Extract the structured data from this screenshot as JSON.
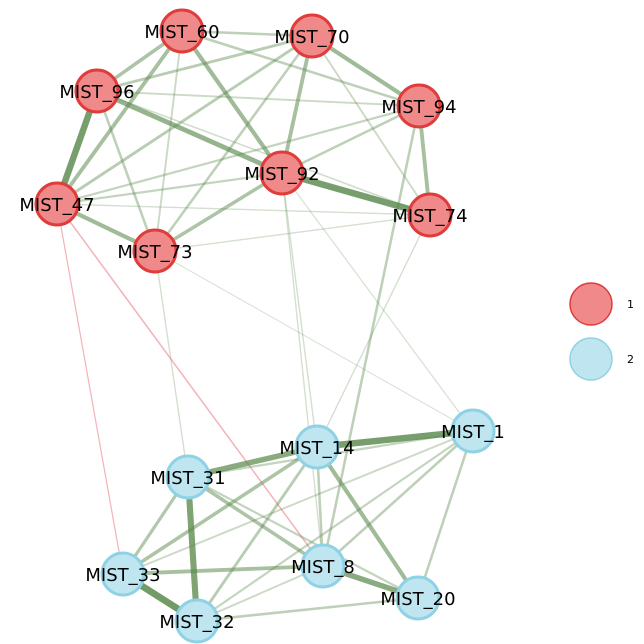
{
  "groups": [
    {
      "id": "1",
      "label": "1",
      "fill": "#f08a8a",
      "stroke": "#e03c3c"
    },
    {
      "id": "2",
      "label": "2",
      "fill": "#bfe6f0",
      "stroke": "#8fd2e6"
    }
  ],
  "edge_colors": {
    "positive": "#5c8a4e",
    "negative": "#e45a6a"
  },
  "nodes": [
    {
      "id": "MIST_60",
      "label": "MIST_60",
      "group": "1"
    },
    {
      "id": "MIST_70",
      "label": "MIST_70",
      "group": "1"
    },
    {
      "id": "MIST_96",
      "label": "MIST_96",
      "group": "1"
    },
    {
      "id": "MIST_94",
      "label": "MIST_94",
      "group": "1"
    },
    {
      "id": "MIST_92",
      "label": "MIST_92",
      "group": "1"
    },
    {
      "id": "MIST_47",
      "label": "MIST_47",
      "group": "1"
    },
    {
      "id": "MIST_74",
      "label": "MIST_74",
      "group": "1"
    },
    {
      "id": "MIST_73",
      "label": "MIST_73",
      "group": "1"
    },
    {
      "id": "MIST_14",
      "label": "MIST_14",
      "group": "2"
    },
    {
      "id": "MIST_1",
      "label": "MIST_1",
      "group": "2"
    },
    {
      "id": "MIST_31",
      "label": "MIST_31",
      "group": "2"
    },
    {
      "id": "MIST_33",
      "label": "MIST_33",
      "group": "2"
    },
    {
      "id": "MIST_8",
      "label": "MIST_8",
      "group": "2"
    },
    {
      "id": "MIST_20",
      "label": "MIST_20",
      "group": "2"
    },
    {
      "id": "MIST_32",
      "label": "MIST_32",
      "group": "2"
    }
  ],
  "edges": [
    {
      "from": "MIST_96",
      "to": "MIST_47",
      "weight": 0.9,
      "sign": "positive"
    },
    {
      "from": "MIST_96",
      "to": "MIST_92",
      "weight": 0.65,
      "sign": "positive"
    },
    {
      "from": "MIST_92",
      "to": "MIST_74",
      "weight": 0.9,
      "sign": "positive"
    },
    {
      "from": "MIST_60",
      "to": "MIST_92",
      "weight": 0.55,
      "sign": "positive"
    },
    {
      "from": "MIST_60",
      "to": "MIST_47",
      "weight": 0.5,
      "sign": "positive"
    },
    {
      "from": "MIST_60",
      "to": "MIST_96",
      "weight": 0.45,
      "sign": "positive"
    },
    {
      "from": "MIST_60",
      "to": "MIST_94",
      "weight": 0.3,
      "sign": "positive"
    },
    {
      "from": "MIST_60",
      "to": "MIST_70",
      "weight": 0.3,
      "sign": "positive"
    },
    {
      "from": "MIST_60",
      "to": "MIST_73",
      "weight": 0.2,
      "sign": "positive"
    },
    {
      "from": "MIST_70",
      "to": "MIST_94",
      "weight": 0.55,
      "sign": "positive"
    },
    {
      "from": "MIST_70",
      "to": "MIST_92",
      "weight": 0.5,
      "sign": "positive"
    },
    {
      "from": "MIST_70",
      "to": "MIST_96",
      "weight": 0.35,
      "sign": "positive"
    },
    {
      "from": "MIST_70",
      "to": "MIST_47",
      "weight": 0.35,
      "sign": "positive"
    },
    {
      "from": "MIST_70",
      "to": "MIST_73",
      "weight": 0.3,
      "sign": "positive"
    },
    {
      "from": "MIST_70",
      "to": "MIST_74",
      "weight": 0.2,
      "sign": "positive"
    },
    {
      "from": "MIST_94",
      "to": "MIST_74",
      "weight": 0.5,
      "sign": "positive"
    },
    {
      "from": "MIST_94",
      "to": "MIST_92",
      "weight": 0.3,
      "sign": "positive"
    },
    {
      "from": "MIST_94",
      "to": "MIST_96",
      "weight": 0.2,
      "sign": "positive"
    },
    {
      "from": "MIST_94",
      "to": "MIST_47",
      "weight": 0.25,
      "sign": "positive"
    },
    {
      "from": "MIST_92",
      "to": "MIST_73",
      "weight": 0.45,
      "sign": "positive"
    },
    {
      "from": "MIST_92",
      "to": "MIST_47",
      "weight": 0.25,
      "sign": "positive"
    },
    {
      "from": "MIST_47",
      "to": "MIST_73",
      "weight": 0.55,
      "sign": "positive"
    },
    {
      "from": "MIST_96",
      "to": "MIST_73",
      "weight": 0.3,
      "sign": "positive"
    },
    {
      "from": "MIST_96",
      "to": "MIST_74",
      "weight": 0.15,
      "sign": "positive"
    },
    {
      "from": "MIST_74",
      "to": "MIST_47",
      "weight": 0.12,
      "sign": "positive"
    },
    {
      "from": "MIST_73",
      "to": "MIST_74",
      "weight": 0.12,
      "sign": "positive"
    },
    {
      "from": "MIST_92",
      "to": "MIST_14",
      "weight": 0.12,
      "sign": "positive"
    },
    {
      "from": "MIST_92",
      "to": "MIST_8",
      "weight": 0.12,
      "sign": "positive"
    },
    {
      "from": "MIST_94",
      "to": "MIST_8",
      "weight": 0.3,
      "sign": "positive"
    },
    {
      "from": "MIST_74",
      "to": "MIST_14",
      "weight": 0.12,
      "sign": "positive"
    },
    {
      "from": "MIST_73",
      "to": "MIST_31",
      "weight": 0.12,
      "sign": "positive"
    },
    {
      "from": "MIST_73",
      "to": "MIST_1",
      "weight": 0.08,
      "sign": "positive"
    },
    {
      "from": "MIST_92",
      "to": "MIST_1",
      "weight": 0.1,
      "sign": "positive"
    },
    {
      "from": "MIST_47",
      "to": "MIST_8",
      "weight": 0.15,
      "sign": "negative"
    },
    {
      "from": "MIST_47",
      "to": "MIST_33",
      "weight": 0.1,
      "sign": "negative"
    },
    {
      "from": "MIST_14",
      "to": "MIST_1",
      "weight": 0.9,
      "sign": "positive"
    },
    {
      "from": "MIST_14",
      "to": "MIST_31",
      "weight": 0.75,
      "sign": "positive"
    },
    {
      "from": "MIST_31",
      "to": "MIST_32",
      "weight": 0.85,
      "sign": "positive"
    },
    {
      "from": "MIST_33",
      "to": "MIST_32",
      "weight": 0.95,
      "sign": "positive"
    },
    {
      "from": "MIST_8",
      "to": "MIST_20",
      "weight": 0.75,
      "sign": "positive"
    },
    {
      "from": "MIST_14",
      "to": "MIST_20",
      "weight": 0.55,
      "sign": "positive"
    },
    {
      "from": "MIST_14",
      "to": "MIST_33",
      "weight": 0.45,
      "sign": "positive"
    },
    {
      "from": "MIST_14",
      "to": "MIST_32",
      "weight": 0.35,
      "sign": "positive"
    },
    {
      "from": "MIST_14",
      "to": "MIST_8",
      "weight": 0.3,
      "sign": "positive"
    },
    {
      "from": "MIST_31",
      "to": "MIST_33",
      "weight": 0.4,
      "sign": "positive"
    },
    {
      "from": "MIST_31",
      "to": "MIST_8",
      "weight": 0.45,
      "sign": "positive"
    },
    {
      "from": "MIST_31",
      "to": "MIST_20",
      "weight": 0.25,
      "sign": "positive"
    },
    {
      "from": "MIST_31",
      "to": "MIST_1",
      "weight": 0.25,
      "sign": "positive"
    },
    {
      "from": "MIST_33",
      "to": "MIST_8",
      "weight": 0.5,
      "sign": "positive"
    },
    {
      "from": "MIST_32",
      "to": "MIST_20",
      "weight": 0.3,
      "sign": "positive"
    },
    {
      "from": "MIST_32",
      "to": "MIST_8",
      "weight": 0.2,
      "sign": "positive"
    },
    {
      "from": "MIST_1",
      "to": "MIST_8",
      "weight": 0.3,
      "sign": "positive"
    },
    {
      "from": "MIST_1",
      "to": "MIST_20",
      "weight": 0.3,
      "sign": "positive"
    },
    {
      "from": "MIST_1",
      "to": "MIST_32",
      "weight": 0.25,
      "sign": "positive"
    },
    {
      "from": "MIST_1",
      "to": "MIST_33",
      "weight": 0.2,
      "sign": "positive"
    }
  ]
}
